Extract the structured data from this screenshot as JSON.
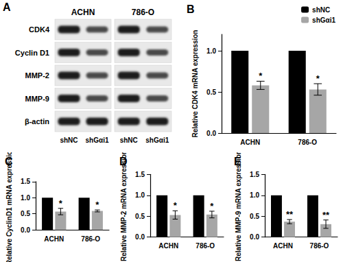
{
  "blot": {
    "title": "A",
    "columns": [
      "ACHN",
      "786-O"
    ],
    "rows": [
      "CDK4",
      "Cyclin D1",
      "MMP-2",
      "MMP-9",
      "β-actin"
    ],
    "lanes": [
      "shNC",
      "shGαi1",
      "shNC",
      "shGαi1"
    ]
  },
  "chart_data": [
    {
      "type": "bar",
      "title": "B",
      "ylabel": "Relative CDK4 mRNA expression",
      "categories": [
        "ACHN",
        "786-O"
      ],
      "series": [
        {
          "name": "shNC",
          "color": "#000000",
          "values": [
            1,
            1
          ]
        },
        {
          "name": "shGαi1",
          "color": "#a6a6a6",
          "values": [
            0.58,
            0.53
          ],
          "errors": [
            0.05,
            0.07
          ],
          "annotations": [
            "*",
            "*"
          ]
        }
      ],
      "ylim": [
        0,
        1.2
      ],
      "yticks": [
        {
          "value": 0,
          "label": "0.0"
        },
        0.5,
        {
          "value": 1,
          "label": "1.0"
        }
      ],
      "legend": "top-right",
      "grid": false
    },
    {
      "type": "bar",
      "title": "C",
      "ylabel": "Relative CyclinD1 mRNA expression",
      "categories": [
        "ACHN",
        "786-O"
      ],
      "series": [
        {
          "name": "shNC",
          "color": "#000000",
          "values": [
            1,
            1
          ]
        },
        {
          "name": "shGαi1",
          "color": "#a6a6a6",
          "values": [
            0.57,
            0.59
          ],
          "errors": [
            0.1,
            0.03
          ],
          "annotations": [
            "*",
            "*"
          ]
        }
      ],
      "ylim": [
        0,
        1.5
      ],
      "yticks": [
        {
          "value": 0,
          "label": "0.0"
        },
        0.5,
        {
          "value": 1,
          "label": "1.0"
        },
        1.5
      ],
      "grid": false
    },
    {
      "type": "bar",
      "title": "D",
      "ylabel": "Relative MMP-2 mRNA expression",
      "categories": [
        "ACHN",
        "786-O"
      ],
      "series": [
        {
          "name": "shNC",
          "color": "#000000",
          "values": [
            1,
            1
          ]
        },
        {
          "name": "shGαi1",
          "color": "#a6a6a6",
          "values": [
            0.53,
            0.54
          ],
          "errors": [
            0.1,
            0.08
          ],
          "annotations": [
            "*",
            "*"
          ]
        }
      ],
      "ylim": [
        0,
        1.5
      ],
      "yticks": [
        {
          "value": 0,
          "label": "0.0"
        },
        0.5,
        {
          "value": 1,
          "label": "1.0"
        },
        1.5
      ],
      "grid": false
    },
    {
      "type": "bar",
      "title": "E",
      "ylabel": "Relative MMP-9 mRNA expression",
      "categories": [
        "ACHN",
        "786-O"
      ],
      "series": [
        {
          "name": "shNC",
          "color": "#000000",
          "values": [
            1,
            1
          ]
        },
        {
          "name": "shGαi1",
          "color": "#a6a6a6",
          "values": [
            0.37,
            0.31
          ],
          "errors": [
            0.05,
            0.1
          ],
          "annotations": [
            "**",
            "**"
          ]
        }
      ],
      "ylim": [
        0,
        1.5
      ],
      "yticks": [
        {
          "value": 0,
          "label": "0.0"
        },
        0.5,
        {
          "value": 1,
          "label": "1.0"
        },
        1.5
      ],
      "grid": false
    }
  ]
}
